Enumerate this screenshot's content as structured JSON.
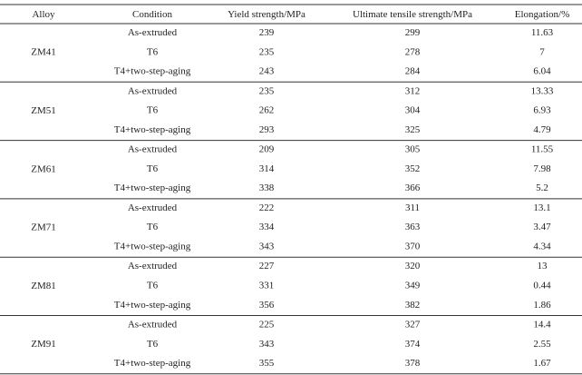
{
  "table": {
    "header": [
      "Alloy",
      "Condition",
      "Yield strength/MPa",
      "Ultimate tensile strength/MPa",
      "Elongation/%"
    ],
    "groups": [
      {
        "alloy": "ZM41",
        "rows": [
          [
            "As-extruded",
            239,
            299,
            11.63
          ],
          [
            "T6",
            235,
            278,
            7
          ],
          [
            "T4+two-step-aging",
            243,
            284,
            6.04
          ]
        ]
      },
      {
        "alloy": "ZM51",
        "rows": [
          [
            "As-extruded",
            235,
            312,
            13.33
          ],
          [
            "T6",
            262,
            304,
            6.93
          ],
          [
            "T4+two-step-aging",
            293,
            325,
            4.79
          ]
        ]
      },
      {
        "alloy": "ZM61",
        "rows": [
          [
            "As-extruded",
            209,
            305,
            11.55
          ],
          [
            "T6",
            314,
            352,
            7.98
          ],
          [
            "T4+two-step-aging",
            338,
            366,
            5.2
          ]
        ]
      },
      {
        "alloy": "ZM71",
        "rows": [
          [
            "As-extruded",
            222,
            311,
            13.1
          ],
          [
            "T6",
            334,
            363,
            3.47
          ],
          [
            "T4+two-step-aging",
            343,
            370,
            4.34
          ]
        ]
      },
      {
        "alloy": "ZM81",
        "rows": [
          [
            "As-extruded",
            227,
            320,
            13
          ],
          [
            "T6",
            331,
            349,
            0.44
          ],
          [
            "T4+two-step-aging",
            356,
            382,
            1.86
          ]
        ]
      },
      {
        "alloy": "ZM91",
        "rows": [
          [
            "As-extruded",
            225,
            327,
            14.4
          ],
          [
            "T6",
            343,
            374,
            2.55
          ],
          [
            "T4+two-step-aging",
            355,
            378,
            1.67
          ]
        ]
      }
    ]
  }
}
